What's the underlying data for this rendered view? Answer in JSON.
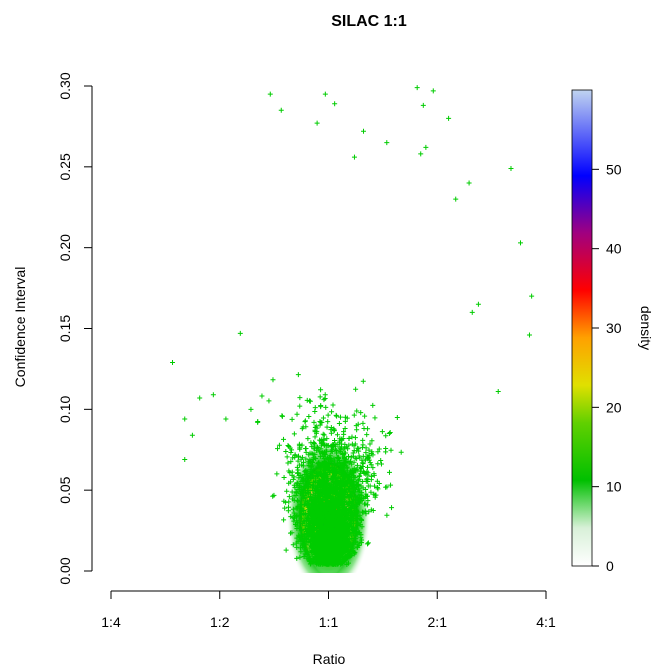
{
  "chart_data": {
    "type": "scatter",
    "title": "SILAC 1:1",
    "xlabel": "Ratio",
    "ylabel": "Confidence Interval",
    "x_scale": "log2",
    "x_ticks": [
      {
        "value": 0.25,
        "label": "1:4"
      },
      {
        "value": 0.5,
        "label": "1:2"
      },
      {
        "value": 1,
        "label": "1:1"
      },
      {
        "value": 2,
        "label": "2:1"
      },
      {
        "value": 4,
        "label": "4:1"
      }
    ],
    "y_ticks": [
      {
        "value": 0.0,
        "label": "0.00"
      },
      {
        "value": 0.05,
        "label": "0.05"
      },
      {
        "value": 0.1,
        "label": "0.10"
      },
      {
        "value": 0.15,
        "label": "0.15"
      },
      {
        "value": 0.2,
        "label": "0.20"
      },
      {
        "value": 0.25,
        "label": "0.25"
      },
      {
        "value": 0.3,
        "label": "0.30"
      }
    ],
    "xlim": [
      0.25,
      4
    ],
    "ylim": [
      0,
      0.3
    ],
    "point_color": "#00cc00",
    "density_peak": {
      "x": 1.0,
      "y": 0.03
    },
    "colorbar": {
      "label": "density",
      "range": [
        0,
        60
      ],
      "ticks": [
        "0",
        "10",
        "20",
        "30",
        "40",
        "50"
      ],
      "colors": [
        "#ffffff",
        "#00c000",
        "#c8e000",
        "#ffa000",
        "#ff0000",
        "#8000a0",
        "#0000ff",
        "#b0c8f0"
      ]
    },
    "outlier_points": [
      [
        0.69,
        0.295
      ],
      [
        0.98,
        0.295
      ],
      [
        1.04,
        0.289
      ],
      [
        1.76,
        0.299
      ],
      [
        1.95,
        0.297
      ],
      [
        1.83,
        0.288
      ],
      [
        0.93,
        0.277
      ],
      [
        1.25,
        0.272
      ],
      [
        1.86,
        0.262
      ],
      [
        1.8,
        0.258
      ],
      [
        1.18,
        0.256
      ],
      [
        3.2,
        0.249
      ],
      [
        2.45,
        0.24
      ],
      [
        2.25,
        0.23
      ],
      [
        3.4,
        0.203
      ],
      [
        3.65,
        0.17
      ],
      [
        3.6,
        0.146
      ],
      [
        2.95,
        0.111
      ],
      [
        0.37,
        0.129
      ],
      [
        0.44,
        0.107
      ],
      [
        0.48,
        0.109
      ],
      [
        0.4,
        0.094
      ],
      [
        0.42,
        0.084
      ],
      [
        0.4,
        0.069
      ],
      [
        0.52,
        0.094
      ],
      [
        0.57,
        0.147
      ],
      [
        0.61,
        0.1
      ],
      [
        2.6,
        0.165
      ],
      [
        2.5,
        0.16
      ],
      [
        2.15,
        0.28
      ],
      [
        1.45,
        0.265
      ],
      [
        0.74,
        0.285
      ]
    ],
    "cloud_sample_size": 3200
  }
}
